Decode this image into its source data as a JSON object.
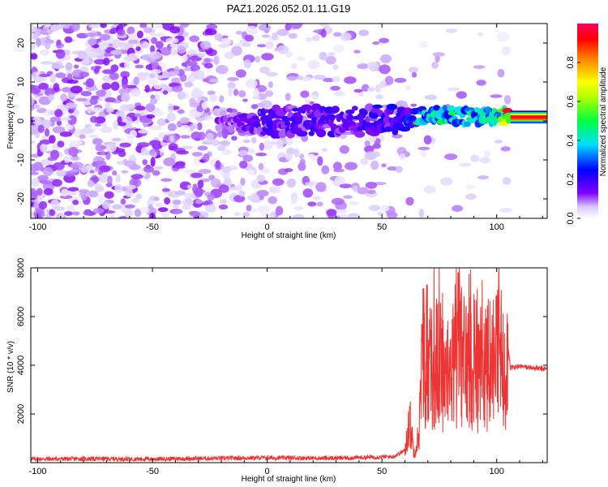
{
  "title": "PAZ1.2026.052.01.11.G19",
  "chart_data": [
    {
      "type": "heatmap",
      "xlabel": "Height of straight line (km)",
      "ylabel": "Frequency (Hz)",
      "xlim": [
        -103,
        122
      ],
      "ylim": [
        -25,
        25
      ],
      "xticks": [
        -100,
        -50,
        0,
        50,
        100
      ],
      "yticks": [
        -20,
        -10,
        0,
        10,
        20
      ],
      "colorbar": {
        "label": "Normalized spectral amplitude",
        "range": [
          0,
          1
        ],
        "ticks": [
          0.0,
          0.2,
          0.4,
          0.6,
          0.8
        ]
      },
      "ridge": [
        {
          "x": -20,
          "freq": 0.0,
          "amplitude": 0.1
        },
        {
          "x": 0,
          "freq": 0.0,
          "amplitude": 0.15
        },
        {
          "x": 20,
          "freq": 0.0,
          "amplitude": 0.15
        },
        {
          "x": 40,
          "freq": 0.0,
          "amplitude": 0.15
        },
        {
          "x": 60,
          "freq": 0.5,
          "amplitude": 0.2
        },
        {
          "x": 70,
          "freq": 2.0,
          "amplitude": 0.3
        },
        {
          "x": 80,
          "freq": 1.5,
          "amplitude": 0.3
        },
        {
          "x": 90,
          "freq": 1.0,
          "amplitude": 0.35
        },
        {
          "x": 100,
          "freq": 1.5,
          "amplitude": 0.35
        },
        {
          "x": 107,
          "freq": 1.0,
          "amplitude": 0.95
        },
        {
          "x": 122,
          "freq": 1.0,
          "amplitude": 0.95
        }
      ]
    },
    {
      "type": "line",
      "xlabel": "Height of straight line (km)",
      "ylabel": "SNR (10 * v/v)",
      "xlim": [
        -103,
        122
      ],
      "ylim": [
        0,
        8000
      ],
      "xticks": [
        -100,
        -50,
        0,
        50,
        100
      ],
      "yticks": [
        2000,
        4000,
        6000,
        8000
      ],
      "series": [
        {
          "color": "#ee3333",
          "x": [
            -103,
            -80,
            -50,
            -20,
            0,
            30,
            55,
            60,
            62,
            64,
            66,
            68,
            70,
            75,
            80,
            83,
            85,
            90,
            95,
            100,
            104,
            106,
            110,
            115,
            120,
            122
          ],
          "y": [
            150,
            160,
            150,
            180,
            200,
            180,
            250,
            500,
            2000,
            500,
            1200,
            5500,
            4200,
            5000,
            3500,
            8000,
            4500,
            5500,
            4500,
            5000,
            5500,
            3900,
            3950,
            3900,
            3850,
            3850
          ]
        }
      ]
    }
  ]
}
